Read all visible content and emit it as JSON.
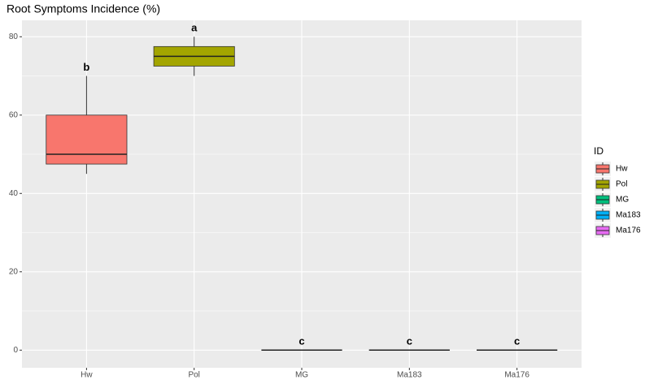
{
  "chart_data": {
    "type": "box",
    "title": "Root Symptoms Incidence (%)",
    "categories": [
      "Hw",
      "Pol",
      "MG",
      "Ma183",
      "Ma176"
    ],
    "colors": [
      "#F8766D",
      "#A3A500",
      "#00BF7D",
      "#00B0F6",
      "#E76BF3"
    ],
    "min": [
      45,
      70,
      0,
      0,
      0
    ],
    "q1": [
      47.5,
      72.5,
      0,
      0,
      0
    ],
    "median": [
      50,
      75,
      0,
      0,
      0
    ],
    "q3": [
      60,
      77.5,
      0,
      0,
      0
    ],
    "max": [
      70,
      80,
      0,
      0,
      0
    ],
    "labels": [
      "b",
      "a",
      "c",
      "c",
      "c"
    ],
    "legend_title": "ID",
    "ylim": [
      -4.5,
      84.2
    ],
    "yticks": [
      0,
      20,
      40,
      60,
      80
    ],
    "minor_yticks": [
      10,
      30,
      50,
      70
    ],
    "grid": true
  }
}
